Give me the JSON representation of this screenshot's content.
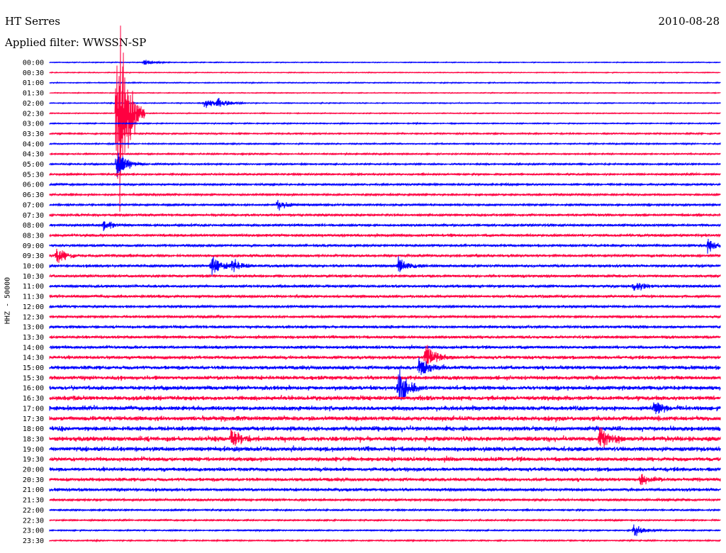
{
  "header": {
    "station": "HT Serres",
    "date": "2010-08-28",
    "filter": "Applied filter: WWSSN-SP"
  },
  "chart_data": {
    "type": "line",
    "ylabel": "HHZ - 50000",
    "row_labels": [
      "00:00",
      "00:30",
      "01:00",
      "01:30",
      "02:00",
      "02:30",
      "03:00",
      "03:30",
      "04:00",
      "04:30",
      "05:00",
      "05:30",
      "06:00",
      "06:30",
      "07:00",
      "07:30",
      "08:00",
      "08:30",
      "09:00",
      "09:30",
      "10:00",
      "10:30",
      "11:00",
      "11:30",
      "12:00",
      "12:30",
      "13:00",
      "13:30",
      "14:00",
      "14:30",
      "15:00",
      "15:30",
      "16:00",
      "16:30",
      "17:00",
      "17:30",
      "18:00",
      "18:30",
      "19:00",
      "19:30",
      "20:00",
      "20:30",
      "21:00",
      "21:30",
      "22:00",
      "22:30",
      "23:00",
      "23:30"
    ],
    "noise_level": [
      0.5,
      0.5,
      0.6,
      0.5,
      0.6,
      0.6,
      0.7,
      0.9,
      0.8,
      0.9,
      1.0,
      1.1,
      1.2,
      1.2,
      1.3,
      1.5,
      1.5,
      1.7,
      1.5,
      1.6,
      1.7,
      1.6,
      1.7,
      1.7,
      1.6,
      1.6,
      1.8,
      1.8,
      2.0,
      2.2,
      2.5,
      2.6,
      2.8,
      3.0,
      3.0,
      3.1,
      3.1,
      3.2,
      3.1,
      2.8,
      2.6,
      2.3,
      2.0,
      1.4,
      1.0,
      0.9,
      0.8,
      0.8
    ],
    "events": [
      {
        "row": 0,
        "x": 0.14,
        "amp": 4
      },
      {
        "row": 4,
        "x": 0.23,
        "amp": 8
      },
      {
        "row": 4,
        "x": 0.25,
        "amp": 6
      },
      {
        "row": 5,
        "x": 0.1,
        "amp": 150
      },
      {
        "row": 10,
        "x": 0.1,
        "amp": 18
      },
      {
        "row": 14,
        "x": 0.34,
        "amp": 6
      },
      {
        "row": 16,
        "x": 0.08,
        "amp": 7
      },
      {
        "row": 18,
        "x": 0.98,
        "amp": 9
      },
      {
        "row": 19,
        "x": 0.01,
        "amp": 10
      },
      {
        "row": 20,
        "x": 0.24,
        "amp": 14
      },
      {
        "row": 20,
        "x": 0.27,
        "amp": 8
      },
      {
        "row": 20,
        "x": 0.52,
        "amp": 8
      },
      {
        "row": 22,
        "x": 0.87,
        "amp": 9
      },
      {
        "row": 29,
        "x": 0.56,
        "amp": 18
      },
      {
        "row": 30,
        "x": 0.55,
        "amp": 12
      },
      {
        "row": 32,
        "x": 0.52,
        "amp": 22
      },
      {
        "row": 34,
        "x": 0.9,
        "amp": 9
      },
      {
        "row": 37,
        "x": 0.27,
        "amp": 12
      },
      {
        "row": 37,
        "x": 0.82,
        "amp": 14
      },
      {
        "row": 41,
        "x": 0.88,
        "amp": 7
      },
      {
        "row": 46,
        "x": 0.87,
        "amp": 8
      }
    ],
    "series": [
      {
        "color": "#0000ff"
      },
      {
        "color": "#ff0040"
      }
    ]
  }
}
